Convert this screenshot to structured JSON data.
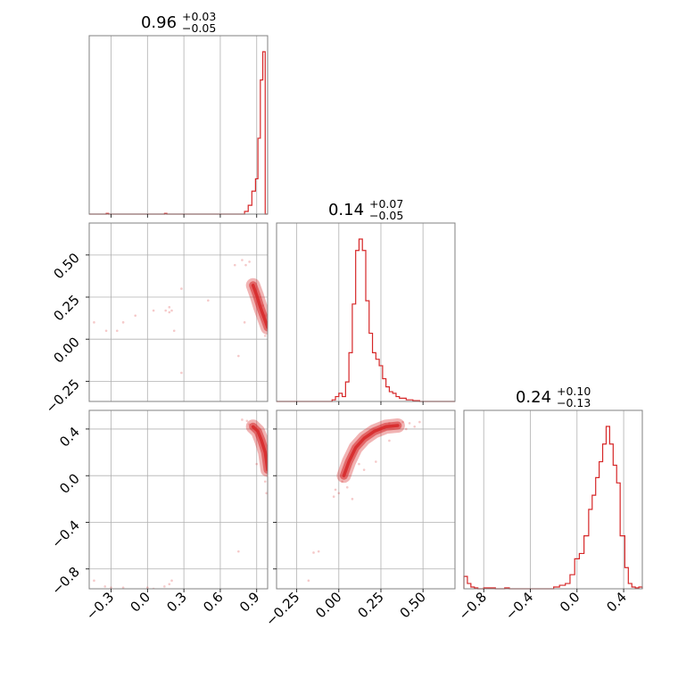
{
  "chart_data": {
    "type": "corner",
    "color": "#d62728",
    "grid": true,
    "parameters": [
      {
        "title": {
          "median": "0.96",
          "upper": "+0.03",
          "lower": "−0.05"
        },
        "range": [
          -0.48,
          0.99
        ],
        "ticks": [
          {
            "v": -0.3,
            "label": "−0.3"
          },
          {
            "v": 0.0,
            "label": "0.0"
          },
          {
            "v": 0.3,
            "label": "0.3"
          },
          {
            "v": 0.6,
            "label": "0.6"
          },
          {
            "v": 0.9,
            "label": "0.9"
          }
        ],
        "hist": {
          "edges": [
            -0.48,
            -0.4,
            -0.34,
            -0.32,
            -0.2,
            -0.18,
            0.1,
            0.14,
            0.16,
            0.8,
            0.83,
            0.86,
            0.89,
            0.91,
            0.93,
            0.95,
            0.97,
            0.99
          ],
          "counts": [
            0,
            0,
            0.004,
            0,
            0,
            0,
            0,
            0.004,
            0,
            0.015,
            0.05,
            0.13,
            0.2,
            0.43,
            0.76,
            0.92,
            0
          ]
        }
      },
      {
        "title": {
          "median": "0.14",
          "upper": "+0.07",
          "lower": "−0.05"
        },
        "range": [
          -0.37,
          0.69
        ],
        "ticks": [
          {
            "v": -0.25,
            "label": "−0.25"
          },
          {
            "v": 0.0,
            "label": "0.00"
          },
          {
            "v": 0.25,
            "label": "0.25"
          },
          {
            "v": 0.5,
            "label": "0.50"
          }
        ],
        "hist": {
          "edges": [
            -0.37,
            -0.04,
            -0.02,
            0.0,
            0.02,
            0.04,
            0.06,
            0.08,
            0.1,
            0.12,
            0.14,
            0.16,
            0.18,
            0.2,
            0.22,
            0.24,
            0.26,
            0.28,
            0.3,
            0.32,
            0.34,
            0.36,
            0.4,
            0.44,
            0.48,
            0.69
          ],
          "counts": [
            0,
            0.01,
            0.03,
            0.05,
            0.03,
            0.12,
            0.3,
            0.6,
            0.93,
            1.0,
            0.93,
            0.62,
            0.42,
            0.3,
            0.26,
            0.22,
            0.14,
            0.09,
            0.06,
            0.05,
            0.03,
            0.02,
            0.01,
            0.005,
            0
          ]
        }
      },
      {
        "title": {
          "median": "0.24",
          "upper": "+0.10",
          "lower": "−0.13"
        },
        "range": [
          -0.97,
          0.56
        ],
        "ticks": [
          {
            "v": -0.8,
            "label": "−0.8"
          },
          {
            "v": -0.4,
            "label": "−0.4"
          },
          {
            "v": 0.0,
            "label": "0.0"
          },
          {
            "v": 0.4,
            "label": "0.4"
          }
        ],
        "hist": {
          "edges": [
            -0.97,
            -0.94,
            -0.91,
            -0.88,
            -0.85,
            -0.8,
            -0.7,
            -0.62,
            -0.58,
            -0.2,
            -0.15,
            -0.1,
            -0.06,
            -0.02,
            0.02,
            0.06,
            0.1,
            0.13,
            0.16,
            0.19,
            0.22,
            0.25,
            0.28,
            0.31,
            0.34,
            0.37,
            0.41,
            0.44,
            0.47,
            0.5,
            0.53,
            0.56
          ],
          "counts": [
            0.07,
            0.03,
            0.01,
            0.005,
            0,
            0.005,
            0,
            0.005,
            0,
            0.01,
            0.02,
            0.03,
            0.08,
            0.17,
            0.2,
            0.3,
            0.45,
            0.53,
            0.63,
            0.72,
            0.82,
            0.92,
            0.82,
            0.7,
            0.6,
            0.3,
            0.12,
            0.03,
            0.01,
            0.005,
            0.01
          ]
        }
      }
    ],
    "pairs": [
      {
        "x": 0,
        "y": 1,
        "ridge": [
          [
            0.87,
            0.32
          ],
          [
            0.9,
            0.26
          ],
          [
            0.93,
            0.19
          ],
          [
            0.96,
            0.13
          ],
          [
            0.99,
            0.07
          ]
        ],
        "scatter": [
          [
            0.84,
            0.46
          ],
          [
            0.81,
            0.44
          ],
          [
            0.78,
            0.47
          ],
          [
            0.95,
            0.2
          ],
          [
            0.97,
            0.14
          ],
          [
            0.72,
            0.44
          ],
          [
            0.18,
            0.19
          ],
          [
            0.2,
            0.17
          ],
          [
            0.15,
            0.17
          ],
          [
            0.05,
            0.17
          ],
          [
            -0.2,
            0.1
          ],
          [
            -0.25,
            0.05
          ],
          [
            -0.34,
            0.05
          ],
          [
            -0.44,
            0.1
          ],
          [
            0.28,
            0.3
          ],
          [
            0.28,
            -0.2
          ],
          [
            0.75,
            -0.1
          ],
          [
            0.18,
            0.16
          ],
          [
            0.22,
            0.05
          ],
          [
            -0.1,
            0.14
          ],
          [
            0.97,
            0.02
          ],
          [
            0.5,
            0.23
          ],
          [
            0.8,
            0.1
          ]
        ]
      },
      {
        "x": 0,
        "y": 2,
        "ridge": [
          [
            0.87,
            0.42
          ],
          [
            0.91,
            0.38
          ],
          [
            0.94,
            0.3
          ],
          [
            0.97,
            0.2
          ],
          [
            0.99,
            0.05
          ]
        ],
        "scatter": [
          [
            0.78,
            0.48
          ],
          [
            0.82,
            0.47
          ],
          [
            0.84,
            0.44
          ],
          [
            0.97,
            -0.05
          ],
          [
            0.98,
            -0.15
          ],
          [
            0.75,
            -0.65
          ],
          [
            0.2,
            -0.9
          ],
          [
            0.18,
            -0.93
          ],
          [
            0.14,
            -0.95
          ],
          [
            0.0,
            -0.96
          ],
          [
            -0.3,
            -0.96
          ],
          [
            -0.2,
            -0.96
          ],
          [
            -0.44,
            -0.9
          ],
          [
            -0.5,
            -0.8
          ],
          [
            0.9,
            0.1
          ],
          [
            0.05,
            -0.97
          ],
          [
            -0.35,
            -0.95
          ]
        ]
      },
      {
        "x": 1,
        "y": 2,
        "ridge": [
          [
            0.03,
            0.0
          ],
          [
            0.06,
            0.12
          ],
          [
            0.1,
            0.24
          ],
          [
            0.15,
            0.32
          ],
          [
            0.21,
            0.38
          ],
          [
            0.28,
            0.42
          ],
          [
            0.35,
            0.43
          ]
        ],
        "scatter": [
          [
            0.02,
            -0.05
          ],
          [
            -0.02,
            -0.12
          ],
          [
            -0.03,
            -0.18
          ],
          [
            0.05,
            -0.1
          ],
          [
            0.08,
            -0.2
          ],
          [
            0.3,
            0.45
          ],
          [
            0.38,
            0.46
          ],
          [
            0.42,
            0.45
          ],
          [
            0.45,
            0.42
          ],
          [
            0.48,
            0.46
          ],
          [
            0.22,
            0.12
          ],
          [
            0.15,
            0.05
          ],
          [
            -0.12,
            -0.65
          ],
          [
            -0.15,
            -0.66
          ],
          [
            -0.18,
            -0.9
          ],
          [
            0.12,
            0.1
          ],
          [
            0.25,
            0.4
          ],
          [
            0.3,
            0.3
          ],
          [
            0.4,
            0.4
          ],
          [
            0.0,
            -0.15
          ]
        ]
      }
    ]
  }
}
